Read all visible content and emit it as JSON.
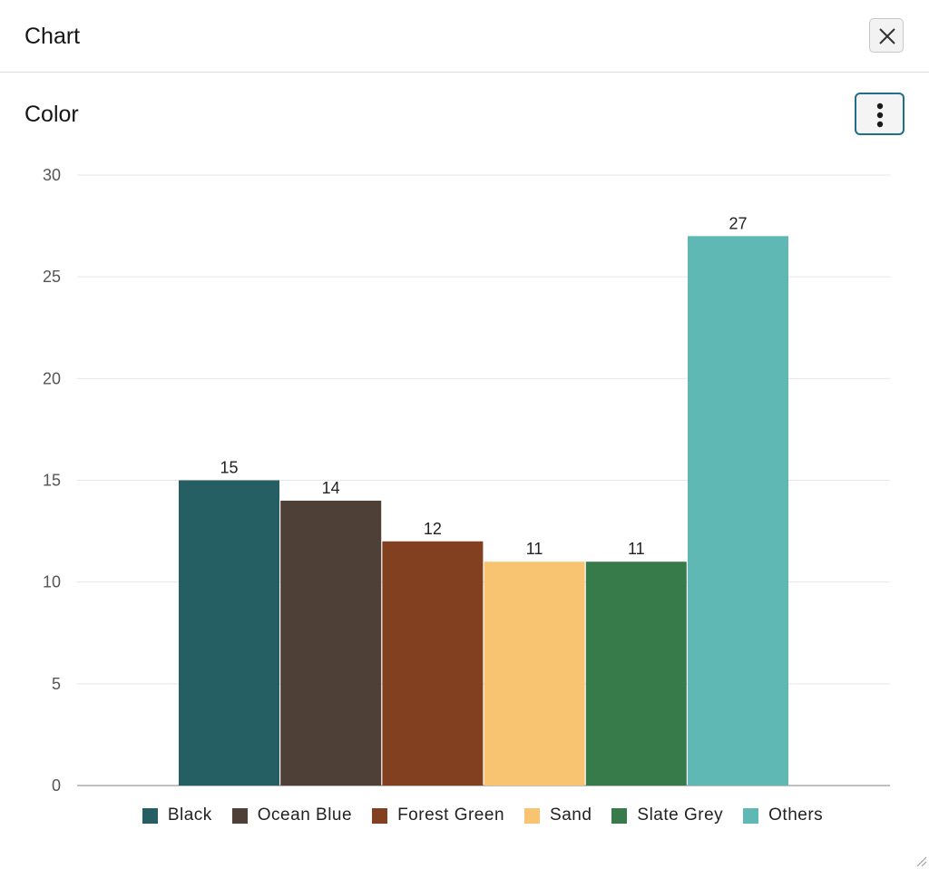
{
  "dialog": {
    "title": "Chart",
    "close_icon": "close-icon",
    "menu_icon": "vertical-dots-icon"
  },
  "section": {
    "title": "Color"
  },
  "chart_data": {
    "type": "bar",
    "title": "Color",
    "categories": [
      "Black",
      "Ocean Blue",
      "Forest Green",
      "Sand",
      "Slate Grey",
      "Others"
    ],
    "values": [
      15,
      14,
      12,
      11,
      11,
      27
    ],
    "colors": [
      "#255e63",
      "#4e4037",
      "#834020",
      "#f8c471",
      "#377b4a",
      "#60b8b4"
    ],
    "ylim": [
      0,
      30
    ],
    "yticks": [
      "0",
      "5",
      "10",
      "15",
      "20",
      "25",
      "30"
    ],
    "ytick_values": [
      0,
      5,
      10,
      15,
      20,
      25,
      30
    ],
    "data_labels": [
      "15",
      "14",
      "12",
      "11",
      "11",
      "27"
    ],
    "grid": true,
    "legend": "bottom"
  }
}
